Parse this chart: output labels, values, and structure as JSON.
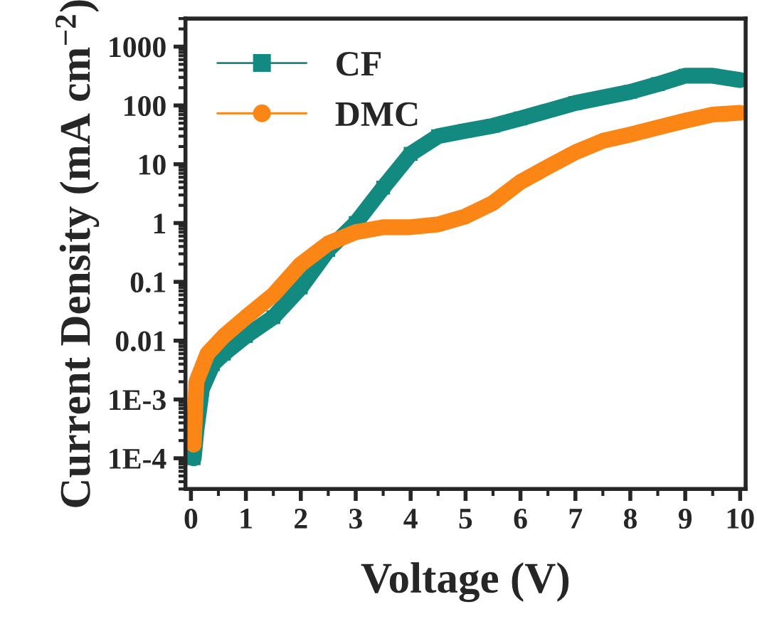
{
  "chart_data": {
    "type": "line",
    "xlabel": "Voltage (V)",
    "ylabel": "Current Density (mA cm$^{−2}$)",
    "log": "y",
    "xlim": [
      -0.1,
      10.1
    ],
    "ylim": [
      3e-05,
      3000
    ],
    "xticks": [
      0,
      1,
      2,
      3,
      4,
      5,
      6,
      7,
      8,
      9,
      10
    ],
    "yticks": [
      {
        "value": 0.0001,
        "label": "1E-4"
      },
      {
        "value": 0.001,
        "label": "1E-3"
      },
      {
        "value": 0.01,
        "label": "0.01"
      },
      {
        "value": 0.1,
        "label": "0.1"
      },
      {
        "value": 1,
        "label": "1"
      },
      {
        "value": 10,
        "label": "10"
      },
      {
        "value": 100,
        "label": "100"
      },
      {
        "value": 1000,
        "label": "1000"
      }
    ],
    "grid": false,
    "legend": "top left",
    "series": [
      {
        "name": "CF",
        "color": "#138a80",
        "marker": "square",
        "x": [
          0.05,
          0.1,
          0.2,
          0.4,
          0.6,
          1,
          1.5,
          2,
          2.5,
          3,
          3.5,
          4,
          4.5,
          5,
          5.5,
          6,
          7,
          8,
          8.5,
          9,
          9.5,
          10
        ],
        "values": [
          0.0001,
          0.0003,
          0.0015,
          0.004,
          0.006,
          0.012,
          0.025,
          0.08,
          0.35,
          1,
          4,
          15,
          30,
          37,
          45,
          60,
          110,
          170,
          230,
          320,
          320,
          270
        ]
      },
      {
        "name": "DMC",
        "color": "#fb8615",
        "marker": "circle",
        "x": [
          0.05,
          0.1,
          0.3,
          0.6,
          1,
          1.5,
          2,
          2.5,
          3,
          3.5,
          4,
          4.5,
          5,
          5.5,
          6,
          6.5,
          7,
          7.5,
          8,
          8.5,
          9,
          9.5,
          10
        ],
        "values": [
          0.00017,
          0.002,
          0.006,
          0.012,
          0.025,
          0.06,
          0.2,
          0.45,
          0.7,
          0.85,
          0.85,
          0.95,
          1.3,
          2.2,
          5,
          9,
          16,
          25,
          32,
          42,
          55,
          70,
          75
        ]
      }
    ]
  }
}
